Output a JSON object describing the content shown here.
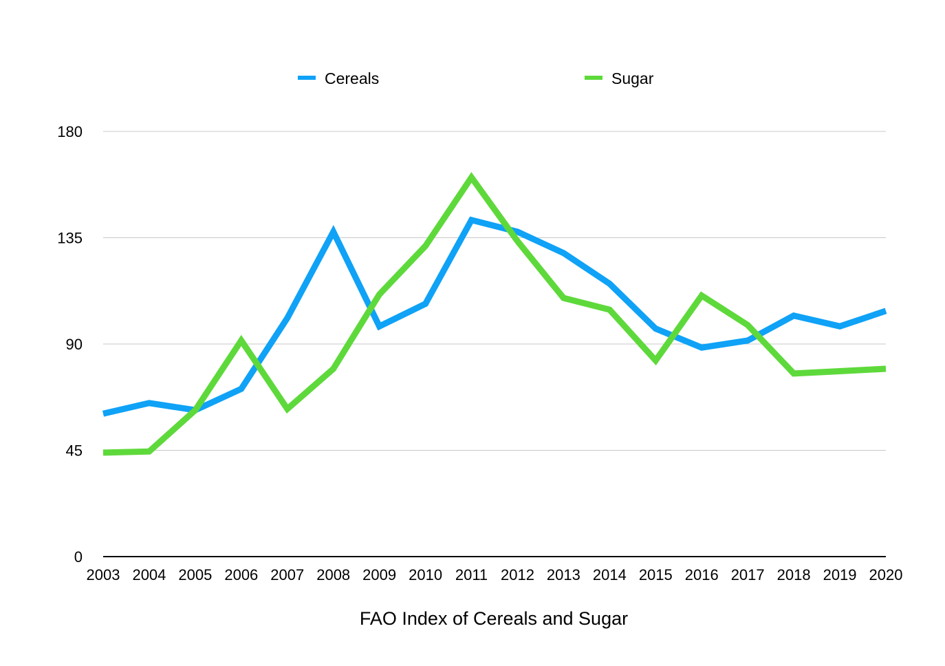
{
  "chart_data": {
    "type": "line",
    "title": "",
    "xlabel": "FAO Index of Cereals and Sugar",
    "ylabel": "",
    "x": [
      "2003",
      "2004",
      "2005",
      "2006",
      "2007",
      "2008",
      "2009",
      "2010",
      "2011",
      "2012",
      "2013",
      "2014",
      "2015",
      "2016",
      "2017",
      "2018",
      "2019",
      "2020"
    ],
    "ylim": [
      0,
      180
    ],
    "yticks": [
      0,
      45,
      90,
      135,
      180
    ],
    "grid": true,
    "legend_position": "top",
    "series": [
      {
        "name": "Cereals",
        "color": "#0fa2f6",
        "values": [
          60.5,
          65,
          62,
          71,
          101,
          137.5,
          97.5,
          107,
          142.5,
          137.5,
          128.5,
          115.5,
          96.5,
          88.5,
          91.5,
          102,
          97.5,
          104
        ]
      },
      {
        "name": "Sugar",
        "color": "#5ed93b",
        "values": [
          44,
          44.5,
          62,
          91.5,
          62.5,
          79.5,
          111,
          131.5,
          160.5,
          133.5,
          109.5,
          104.5,
          83,
          110.5,
          98,
          77.5,
          78.5,
          79.5
        ]
      }
    ]
  }
}
